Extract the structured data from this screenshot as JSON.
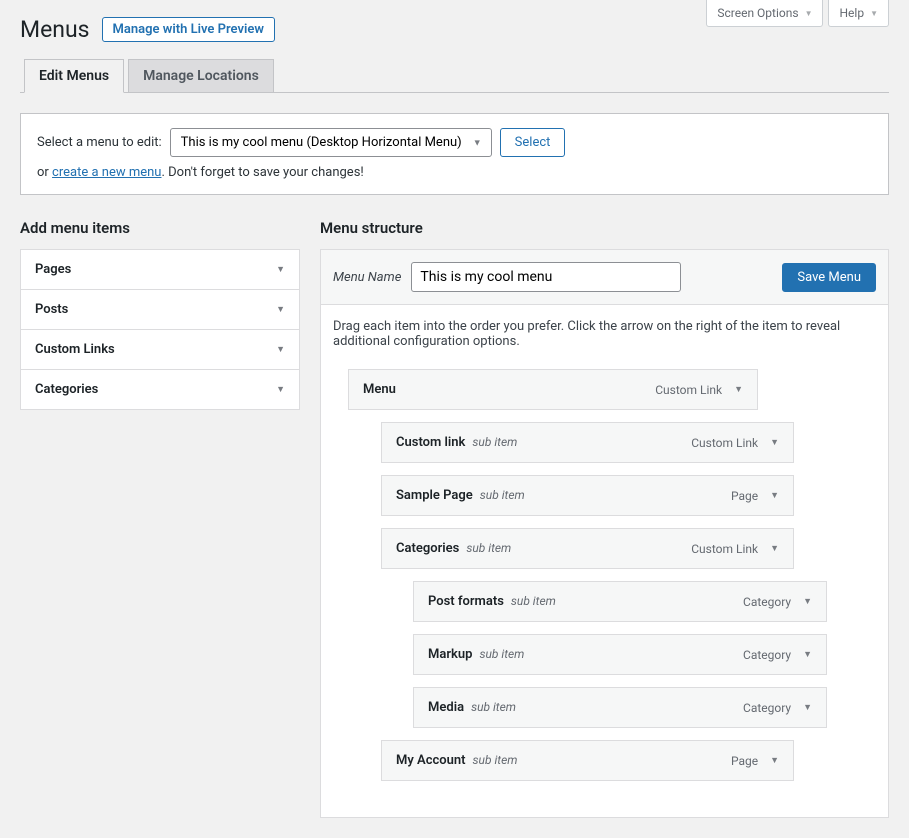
{
  "top_buttons": {
    "screen_options": "Screen Options",
    "help": "Help"
  },
  "header": {
    "title": "Menus",
    "preview_button": "Manage with Live Preview"
  },
  "tabs": [
    {
      "label": "Edit Menus",
      "active": true
    },
    {
      "label": "Manage Locations",
      "active": false
    }
  ],
  "selector": {
    "label": "Select a menu to edit:",
    "selected": "This is my cool menu (Desktop Horizontal Menu)",
    "select_button": "Select",
    "or_text": "or ",
    "create_link": "create a new menu",
    "remainder": ". Don't forget to save your changes!"
  },
  "left": {
    "title": "Add menu items",
    "panels": [
      "Pages",
      "Posts",
      "Custom Links",
      "Categories"
    ]
  },
  "right": {
    "title": "Menu structure",
    "menu_name_label": "Menu Name",
    "menu_name_value": "This is my cool menu",
    "save_button": "Save Menu",
    "instructions": "Drag each item into the order you prefer. Click the arrow on the right of the item to reveal additional configuration options.",
    "sub_item_label": "sub item",
    "items": [
      {
        "title": "Menu",
        "type": "Custom Link",
        "depth": 0,
        "sub": false
      },
      {
        "title": "Custom link",
        "type": "Custom Link",
        "depth": 1,
        "sub": true
      },
      {
        "title": "Sample Page",
        "type": "Page",
        "depth": 1,
        "sub": true
      },
      {
        "title": "Categories",
        "type": "Custom Link",
        "depth": 1,
        "sub": true
      },
      {
        "title": "Post formats",
        "type": "Category",
        "depth": 2,
        "sub": true
      },
      {
        "title": "Markup",
        "type": "Category",
        "depth": 2,
        "sub": true
      },
      {
        "title": "Media",
        "type": "Category",
        "depth": 2,
        "sub": true
      },
      {
        "title": "My Account",
        "type": "Page",
        "depth": 1,
        "sub": true
      }
    ]
  },
  "colors": {
    "primary": "#2271b1",
    "border": "#dcdcde",
    "bg": "#f1f1f1",
    "panel_bg": "#f6f7f7"
  }
}
